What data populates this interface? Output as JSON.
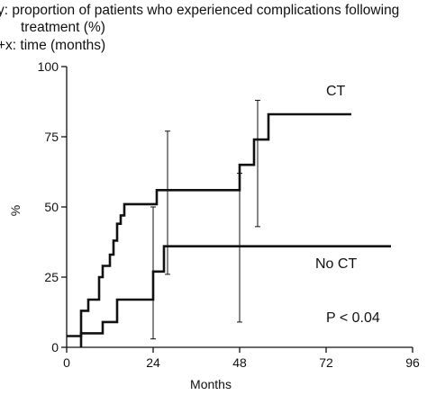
{
  "caption": {
    "y_line": "y: proportion of patients who experienced complications following",
    "y_line_cont": "treatment (%)",
    "x_line": "+x: time (months)"
  },
  "chart_data": {
    "type": "line",
    "step": true,
    "xlabel": "Months",
    "ylabel": "%",
    "xlim": [
      0,
      96
    ],
    "ylim": [
      0,
      100
    ],
    "x_ticks": [
      0,
      24,
      48,
      72,
      96
    ],
    "y_ticks": [
      0,
      25,
      50,
      75,
      100
    ],
    "x_tick_labels": [
      "0",
      "24",
      "48",
      "72",
      "96"
    ],
    "y_tick_labels": [
      "0",
      "25",
      "50",
      "75",
      "100"
    ],
    "grid": false,
    "series": [
      {
        "name": "CT",
        "points": [
          [
            0,
            4
          ],
          [
            4,
            4
          ],
          [
            4,
            13
          ],
          [
            6,
            13
          ],
          [
            6,
            17
          ],
          [
            9,
            17
          ],
          [
            9,
            25
          ],
          [
            10,
            25
          ],
          [
            10,
            29
          ],
          [
            12,
            29
          ],
          [
            12,
            33
          ],
          [
            13,
            33
          ],
          [
            13,
            38
          ],
          [
            14,
            38
          ],
          [
            14,
            44
          ],
          [
            15,
            44
          ],
          [
            15,
            47
          ],
          [
            16,
            47
          ],
          [
            16,
            51
          ],
          [
            25,
            51
          ],
          [
            25,
            56
          ],
          [
            48,
            56
          ],
          [
            48,
            65
          ],
          [
            52,
            65
          ],
          [
            52,
            74
          ],
          [
            56,
            74
          ],
          [
            56,
            83
          ],
          [
            79,
            83
          ]
        ],
        "error_bars": [
          {
            "x": 28,
            "low": 26,
            "high": 77
          },
          {
            "x": 53,
            "low": 43,
            "high": 88
          }
        ]
      },
      {
        "name": "No CT",
        "points": [
          [
            4,
            0
          ],
          [
            4,
            5
          ],
          [
            10,
            5
          ],
          [
            10,
            9
          ],
          [
            14,
            9
          ],
          [
            14,
            17
          ],
          [
            24,
            17
          ],
          [
            24,
            27
          ],
          [
            27,
            27
          ],
          [
            27,
            36
          ],
          [
            90,
            36
          ]
        ],
        "error_bars": [
          {
            "x": 24,
            "low": 3,
            "high": 50
          },
          {
            "x": 48,
            "low": 9,
            "high": 62
          }
        ]
      }
    ],
    "annotations": {
      "ct_label": "CT",
      "noct_label": "No CT",
      "p_value": "P < 0.04"
    }
  }
}
